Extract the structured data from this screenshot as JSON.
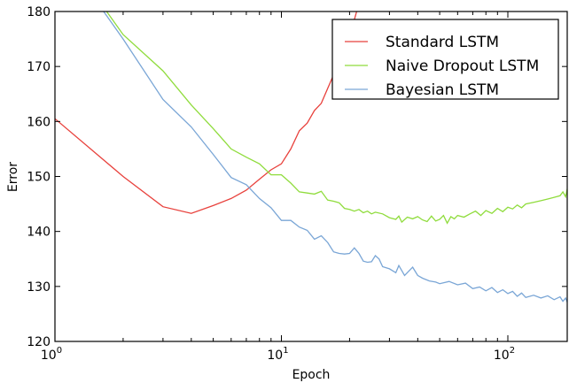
{
  "chart_data": {
    "type": "line",
    "title": "",
    "xlabel": "Epoch",
    "ylabel": "Error",
    "xscale": "log",
    "xlim": [
      1,
      183
    ],
    "ylim": [
      120,
      180
    ],
    "xticks": [
      {
        "base": "10",
        "exp": "0",
        "value": 1
      },
      {
        "base": "10",
        "exp": "1",
        "value": 10
      },
      {
        "base": "10",
        "exp": "2",
        "value": 100
      }
    ],
    "yticks": [
      "120",
      "130",
      "140",
      "150",
      "160",
      "170",
      "180"
    ],
    "legend_placement": "top-right",
    "series": [
      {
        "name": "Standard LSTM",
        "color": "#e8413c",
        "x": [
          1,
          2,
          3,
          4,
          5,
          6,
          7,
          8,
          9,
          10,
          11,
          12,
          13,
          14,
          15,
          16,
          17,
          18,
          19,
          20,
          21,
          22
        ],
        "y": [
          160.5,
          150,
          144.5,
          143.3,
          144.7,
          146,
          147.5,
          149.5,
          151.2,
          152.3,
          155,
          158.3,
          159.7,
          162,
          163.3,
          166,
          168.5,
          171,
          173.5,
          176,
          178.5,
          181.5
        ]
      },
      {
        "name": "Naive Dropout LSTM",
        "color": "#8fdc3c",
        "x": [
          1.5,
          2,
          3,
          4,
          5,
          6,
          7,
          8,
          9,
          10,
          11,
          12,
          13,
          14,
          15,
          16,
          17,
          18,
          19,
          20,
          21,
          22,
          23,
          24,
          25,
          26,
          28,
          30,
          32,
          33,
          34,
          36,
          38,
          40,
          42,
          44,
          46,
          48,
          50,
          52,
          54,
          56,
          58,
          60,
          64,
          68,
          72,
          76,
          80,
          85,
          90,
          95,
          100,
          105,
          110,
          115,
          120,
          130,
          140,
          150,
          160,
          170,
          175,
          180,
          183
        ],
        "y": [
          183,
          175.8,
          169.2,
          163,
          158.7,
          155,
          153.5,
          152.3,
          150.3,
          150.3,
          148.8,
          147.2,
          147,
          146.8,
          147.3,
          145.7,
          145.5,
          145.2,
          144.2,
          144,
          143.7,
          144,
          143.4,
          143.7,
          143.2,
          143.5,
          143.2,
          142.5,
          142.2,
          142.8,
          141.7,
          142.6,
          142.3,
          142.7,
          142.1,
          141.8,
          142.8,
          141.9,
          142.2,
          142.9,
          141.5,
          142.7,
          142.3,
          142.9,
          142.6,
          143.2,
          143.7,
          142.9,
          143.8,
          143.3,
          144.2,
          143.6,
          144.4,
          144.1,
          144.8,
          144.3,
          145,
          145.3,
          145.6,
          145.9,
          146.2,
          146.5,
          147.2,
          146.3,
          147.8
        ]
      },
      {
        "name": "Bayesian LSTM",
        "color": "#7aa6d6",
        "x": [
          1.4,
          2,
          3,
          4,
          5,
          6,
          7,
          8,
          9,
          10,
          11,
          12,
          13,
          14,
          15,
          16,
          17,
          18,
          19,
          20,
          21,
          22,
          23,
          24,
          25,
          26,
          27,
          28,
          30,
          32,
          33,
          35,
          38,
          40,
          42,
          45,
          48,
          50,
          55,
          60,
          65,
          70,
          75,
          80,
          85,
          90,
          95,
          100,
          105,
          110,
          115,
          120,
          130,
          140,
          150,
          160,
          170,
          175,
          180,
          183
        ],
        "y": [
          184,
          175,
          164,
          159,
          154,
          149.8,
          148.5,
          146,
          144.3,
          142,
          142,
          140.8,
          140.2,
          138.6,
          139.2,
          138,
          136.3,
          136,
          135.9,
          136,
          137,
          136,
          134.6,
          134.4,
          134.5,
          135.6,
          135,
          133.6,
          133.2,
          132.5,
          133.8,
          132,
          133.5,
          132,
          131.5,
          131,
          130.8,
          130.5,
          130.9,
          130.3,
          130.6,
          129.6,
          129.9,
          129.2,
          129.8,
          128.9,
          129.4,
          128.7,
          129.1,
          128.2,
          128.8,
          128,
          128.4,
          127.9,
          128.3,
          127.6,
          128.1,
          127.3,
          127.9,
          127.1
        ]
      }
    ]
  }
}
